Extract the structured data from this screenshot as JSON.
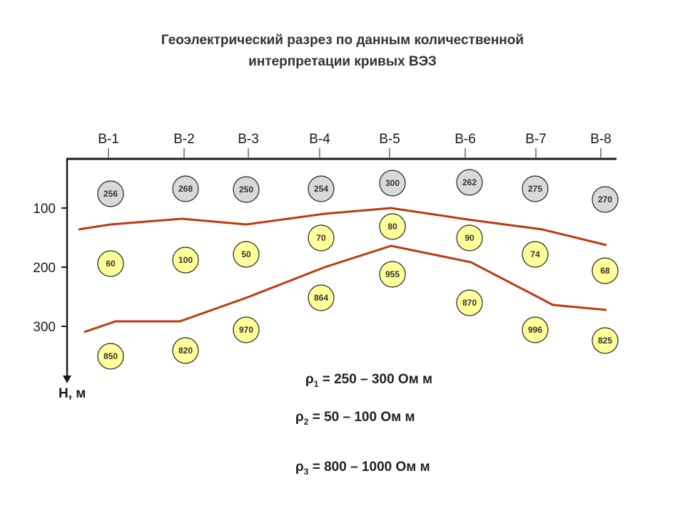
{
  "title": {
    "line1": "Геоэлектрический разрез по данным количественной",
    "line2": "интерпретации кривых ВЭЗ"
  },
  "axis": {
    "depth_label": "H, м",
    "depth_ticks": [
      "100",
      "200",
      "300"
    ]
  },
  "soundings": [
    {
      "label": "В-1",
      "layers": [
        "256",
        "60",
        "850"
      ]
    },
    {
      "label": "В-2",
      "layers": [
        "268",
        "100",
        "820"
      ]
    },
    {
      "label": "В-3",
      "layers": [
        "250",
        "50",
        "970"
      ]
    },
    {
      "label": "В-4",
      "layers": [
        "254",
        "70",
        "864"
      ]
    },
    {
      "label": "В-5",
      "layers": [
        "300",
        "80",
        "955"
      ]
    },
    {
      "label": "В-6",
      "layers": [
        "262",
        "90",
        "870"
      ]
    },
    {
      "label": "В-7",
      "layers": [
        "275",
        "74",
        "996"
      ]
    },
    {
      "label": "В-8",
      "layers": [
        "270",
        "68",
        "825"
      ]
    }
  ],
  "colors": {
    "layer1_fill": "#d9d9d9",
    "layer2_fill": "#ffff99",
    "layer3_fill": "#ffff99",
    "boundary_line": "#c0390b",
    "axis": "#1a1a1a"
  },
  "legend": [
    {
      "symbol": "ρ",
      "index": "1",
      "text": " = 250 – 300 Ом м"
    },
    {
      "symbol": "ρ",
      "index": "2",
      "text": " = 50 – 100 Ом м"
    },
    {
      "symbol": "ρ",
      "index": "3",
      "text": " = 800 – 1000 Ом м"
    }
  ]
}
